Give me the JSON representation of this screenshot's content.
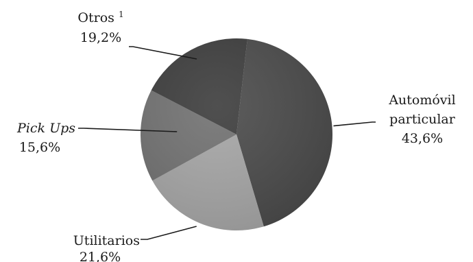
{
  "chart_data": {
    "type": "pie",
    "title": "",
    "slices": [
      {
        "label": "Automóvil particular",
        "label_lines": [
          "Automóvil",
          "particular"
        ],
        "value": 43.6,
        "value_text": "43,6%",
        "color": "#4a4a4a",
        "italic": false
      },
      {
        "label": "Utilitarios",
        "label_lines": [
          "Utilitarios"
        ],
        "value": 21.6,
        "value_text": "21,6%",
        "color": "#a6a6a6",
        "italic": false
      },
      {
        "label": "Pick Ups",
        "label_lines": [
          "Pick Ups"
        ],
        "value": 15.6,
        "value_text": "15,6%",
        "color": "#717171",
        "italic": true
      },
      {
        "label": "Otros",
        "label_lines": [
          "Otros"
        ],
        "superscript": "1",
        "value": 19.2,
        "value_text": "19,2%",
        "color": "#3c3c3c",
        "italic": false
      }
    ],
    "legend": "none",
    "data_labels": "outside with leader lines"
  }
}
